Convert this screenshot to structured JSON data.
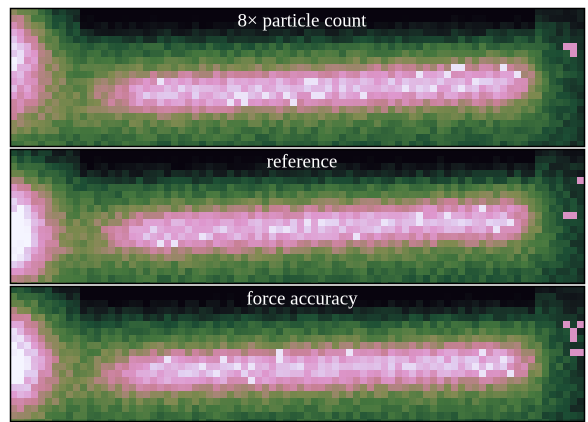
{
  "panels": [
    {
      "label": "8× particle count"
    },
    {
      "label": "reference"
    },
    {
      "label": "force accuracy"
    }
  ]
}
